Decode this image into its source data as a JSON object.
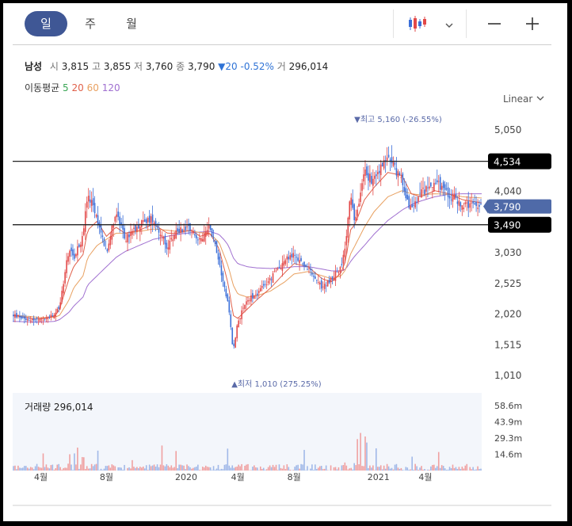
{
  "tabs": [
    "일",
    "주",
    "월"
  ],
  "active_tab": 0,
  "icons": {
    "chart_type": "candlestick-icon",
    "dropdown": "chevron-down-icon",
    "zoom_out": "minus-icon",
    "zoom_in": "plus-icon"
  },
  "quote": {
    "name": "남성",
    "open_label": "시",
    "open": "3,815",
    "high_label": "고",
    "high": "3,855",
    "low_label": "저",
    "low": "3,760",
    "close_label": "종",
    "close": "3,790",
    "change": "▼20 -0.52%",
    "volume_label": "거",
    "volume": "296,014"
  },
  "moving_average": {
    "label": "이동평균",
    "periods": [
      {
        "text": "5",
        "color": "#3aa655"
      },
      {
        "text": "20",
        "color": "#e0604a"
      },
      {
        "text": "60",
        "color": "#e8a060"
      },
      {
        "text": "120",
        "color": "#a070d0"
      }
    ]
  },
  "scale_mode": "Linear",
  "colors": {
    "up": "#e24848",
    "down": "#3a6ed8",
    "ma5": "#3aa655",
    "ma20": "#e0604a",
    "ma60": "#e8a060",
    "ma120": "#a070d0",
    "accent": "#3f5795",
    "hline": "#222222"
  },
  "chart_data": {
    "type": "candlestick",
    "y_ticks": [
      "5,050",
      "4,040",
      "3,030",
      "2,525",
      "2,020",
      "1,515",
      "1,010"
    ],
    "y_tick_values": [
      5050,
      4040,
      3030,
      2525,
      2020,
      1515,
      1010
    ],
    "x_ticks": [
      "4월",
      "8월",
      "2020",
      "4월",
      "8월",
      "2021",
      "4월"
    ],
    "x_tick_positions": [
      0.06,
      0.2,
      0.37,
      0.48,
      0.6,
      0.78,
      0.88
    ],
    "ylim": [
      1010,
      5050
    ],
    "price_series": {
      "x": [
        0.0,
        0.04,
        0.06,
        0.09,
        0.1,
        0.12,
        0.13,
        0.15,
        0.16,
        0.18,
        0.2,
        0.22,
        0.24,
        0.27,
        0.3,
        0.33,
        0.35,
        0.38,
        0.4,
        0.42,
        0.44,
        0.45,
        0.46,
        0.47,
        0.48,
        0.5,
        0.52,
        0.55,
        0.58,
        0.6,
        0.63,
        0.66,
        0.68,
        0.7,
        0.71,
        0.72,
        0.73,
        0.75,
        0.77,
        0.8,
        0.83,
        0.85,
        0.87,
        0.9,
        0.93,
        0.96,
        1.0
      ],
      "close": [
        2000,
        1930,
        1920,
        2000,
        2150,
        3100,
        2950,
        3300,
        4000,
        3600,
        3050,
        3700,
        3250,
        3500,
        3600,
        3100,
        3400,
        3450,
        3200,
        3500,
        2900,
        2500,
        2200,
        1400,
        1900,
        2250,
        2350,
        2600,
        2900,
        3000,
        2750,
        2450,
        2600,
        2800,
        3100,
        4000,
        3500,
        4350,
        4200,
        4650,
        4200,
        3700,
        4000,
        4200,
        4000,
        3800,
        3790
      ]
    },
    "ma5": [
      1990,
      1950,
      1930,
      2020,
      2200,
      2950,
      3000,
      3250,
      3800,
      3700,
      3150,
      3600,
      3350,
      3450,
      3550,
      3200,
      3350,
      3430,
      3250,
      3450,
      2980,
      2550,
      2250,
      1600,
      1850,
      2200,
      2330,
      2570,
      2850,
      2980,
      2780,
      2500,
      2600,
      2780,
      3050,
      3800,
      3600,
      4250,
      4250,
      4550,
      4250,
      3800,
      3950,
      4150,
      4020,
      3850,
      3800
    ],
    "ma20": [
      2000,
      1950,
      1940,
      1990,
      2100,
      2600,
      2800,
      3000,
      3400,
      3550,
      3300,
      3450,
      3350,
      3400,
      3500,
      3350,
      3350,
      3400,
      3300,
      3350,
      3100,
      2800,
      2500,
      2000,
      1950,
      2100,
      2250,
      2450,
      2700,
      2850,
      2800,
      2600,
      2550,
      2700,
      2900,
      3400,
      3500,
      3900,
      4100,
      4350,
      4300,
      4000,
      3950,
      4050,
      4000,
      3900,
      3850
    ],
    "ma60": [
      2000,
      1980,
      1960,
      1970,
      2000,
      2250,
      2450,
      2650,
      2950,
      3150,
      3250,
      3350,
      3350,
      3380,
      3420,
      3400,
      3380,
      3390,
      3360,
      3350,
      3200,
      3000,
      2800,
      2500,
      2350,
      2300,
      2320,
      2400,
      2550,
      2680,
      2720,
      2650,
      2600,
      2650,
      2750,
      3000,
      3150,
      3450,
      3700,
      3950,
      4050,
      4000,
      3980,
      4000,
      3990,
      3950,
      3930
    ],
    "ma120": [
      1900,
      1890,
      1890,
      1900,
      1930,
      2050,
      2150,
      2300,
      2500,
      2650,
      2800,
      2950,
      3050,
      3150,
      3250,
      3300,
      3330,
      3360,
      3370,
      3380,
      3330,
      3250,
      3150,
      2950,
      2850,
      2800,
      2780,
      2770,
      2780,
      2800,
      2800,
      2760,
      2730,
      2730,
      2760,
      2880,
      2980,
      3150,
      3330,
      3560,
      3730,
      3820,
      3880,
      3950,
      3990,
      4000,
      4000
    ],
    "hlines": [
      {
        "label": "4,534",
        "value": 4534
      },
      {
        "label": "3,490",
        "value": 3490
      }
    ],
    "current_price": {
      "label": "3,790",
      "value": 3790
    },
    "high_annotation": {
      "text": "▼최고 5,160 (-26.55%)",
      "value": 5160,
      "x": 0.73
    },
    "low_annotation": {
      "text": "▲최저 1,010 (275.25%)",
      "value": 1010,
      "x": 0.47
    },
    "volume": {
      "title": "거래량 296,014",
      "y_ticks": [
        "58.6m",
        "43.9m",
        "29.3m",
        "14.6m"
      ],
      "y_tick_values": [
        58.6,
        43.9,
        29.3,
        14.6
      ],
      "ylim": [
        0,
        70
      ]
    }
  }
}
